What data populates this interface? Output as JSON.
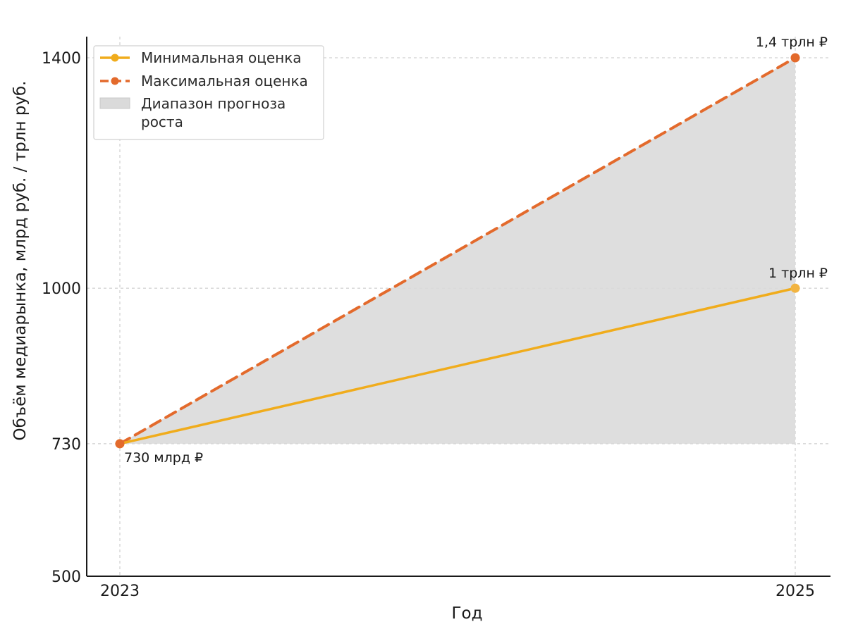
{
  "chart_data": {
    "type": "line",
    "xlabel": "Год",
    "ylabel": "Объём медиарынка, млрд руб. / трлн руб.",
    "x": [
      2023,
      2025
    ],
    "x_ticks": [
      "2023",
      "2025"
    ],
    "y_ticks": [
      500,
      730,
      1000,
      1400
    ],
    "ylim": [
      500,
      1400
    ],
    "xlim": [
      2023,
      2025
    ],
    "grid": true,
    "legend_position": "top-left",
    "series": [
      {
        "name": "Минимальная оценка",
        "values": [
          730,
          1000
        ],
        "color": "#f0ac1c",
        "style": "solid"
      },
      {
        "name": "Максимальная оценка",
        "values": [
          730,
          1400
        ],
        "color": "#e36a2c",
        "style": "dashed"
      }
    ],
    "fill_between": {
      "name_line1": "Диапазон прогноза",
      "name_line2": "роста",
      "color": "#dadada"
    },
    "annotations": [
      {
        "text": "730 млрд ₽",
        "x": 2023,
        "y": 730
      },
      {
        "text": "1 трлн ₽",
        "x": 2025,
        "y": 1000
      },
      {
        "text": "1,4 трлн ₽",
        "x": 2025,
        "y": 1400
      }
    ]
  }
}
